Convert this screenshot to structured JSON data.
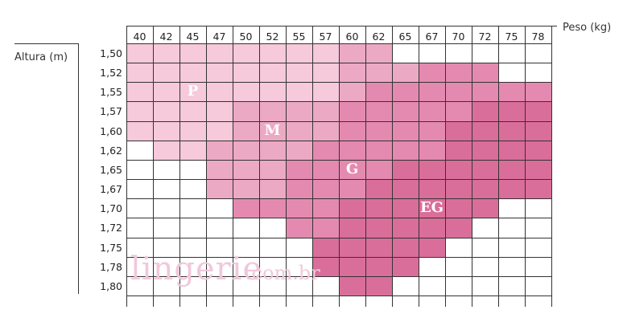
{
  "chart_data": {
    "type": "table",
    "title": "",
    "xlabel": "Peso (kg)",
    "ylabel": "Altura (m)",
    "columns": [
      "40",
      "42",
      "45",
      "47",
      "50",
      "52",
      "55",
      "57",
      "60",
      "62",
      "65",
      "67",
      "70",
      "72",
      "75",
      "78"
    ],
    "rows": [
      "1,50",
      "1,52",
      "1,55",
      "1,57",
      "1,60",
      "1,62",
      "1,65",
      "1,67",
      "1,70",
      "1,72",
      "1,75",
      "1,78",
      "1,80"
    ],
    "size_labels": [
      "P",
      "M",
      "G",
      "EG"
    ],
    "colors": {
      "P": "#f6c9db",
      "M": "#eca9c4",
      "G": "#e48ab0",
      "EG": "#da6e9a",
      "empty": "#ffffff",
      "grid": "#333333"
    },
    "cells": [
      [
        "P",
        "P",
        "P",
        "P",
        "P",
        "P",
        "P",
        "P",
        "M",
        "M",
        "",
        "",
        "",
        "",
        "",
        ""
      ],
      [
        "P",
        "P",
        "P",
        "P",
        "P",
        "P",
        "P",
        "P",
        "M",
        "M",
        "M",
        "G",
        "G",
        "G",
        "",
        ""
      ],
      [
        "P",
        "P",
        "P",
        "P",
        "P",
        "P",
        "P",
        "P",
        "M",
        "G",
        "G",
        "G",
        "G",
        "G",
        "G",
        "G"
      ],
      [
        "P",
        "P",
        "P",
        "P",
        "M",
        "M",
        "M",
        "M",
        "G",
        "G",
        "G",
        "G",
        "G",
        "EG",
        "EG",
        "EG"
      ],
      [
        "P",
        "P",
        "P",
        "P",
        "M",
        "M",
        "M",
        "M",
        "G",
        "G",
        "G",
        "G",
        "EG",
        "EG",
        "EG",
        "EG"
      ],
      [
        "",
        "P",
        "P",
        "M",
        "M",
        "M",
        "M",
        "G",
        "G",
        "G",
        "G",
        "G",
        "EG",
        "EG",
        "EG",
        "EG"
      ],
      [
        "",
        "",
        "",
        "M",
        "M",
        "M",
        "G",
        "G",
        "G",
        "G",
        "EG",
        "EG",
        "EG",
        "EG",
        "EG",
        "EG"
      ],
      [
        "",
        "",
        "",
        "M",
        "M",
        "M",
        "G",
        "G",
        "G",
        "EG",
        "EG",
        "EG",
        "EG",
        "EG",
        "EG",
        "EG"
      ],
      [
        "",
        "",
        "",
        "",
        "G",
        "G",
        "G",
        "G",
        "EG",
        "EG",
        "EG",
        "EG",
        "EG",
        "EG",
        "",
        ""
      ],
      [
        "",
        "",
        "",
        "",
        "",
        "",
        "G",
        "G",
        "EG",
        "EG",
        "EG",
        "EG",
        "EG",
        "",
        "",
        ""
      ],
      [
        "",
        "",
        "",
        "",
        "",
        "",
        "",
        "EG",
        "EG",
        "EG",
        "EG",
        "EG",
        "",
        "",
        "",
        ""
      ],
      [
        "",
        "",
        "",
        "",
        "",
        "",
        "",
        "EG",
        "EG",
        "EG",
        "EG",
        "",
        "",
        "",
        "",
        ""
      ],
      [
        "",
        "",
        "",
        "",
        "",
        "",
        "",
        "",
        "EG",
        "EG",
        "",
        "",
        "",
        "",
        "",
        ""
      ]
    ]
  },
  "watermark": {
    "main": "lingerie",
    "sub": ".com.br"
  }
}
